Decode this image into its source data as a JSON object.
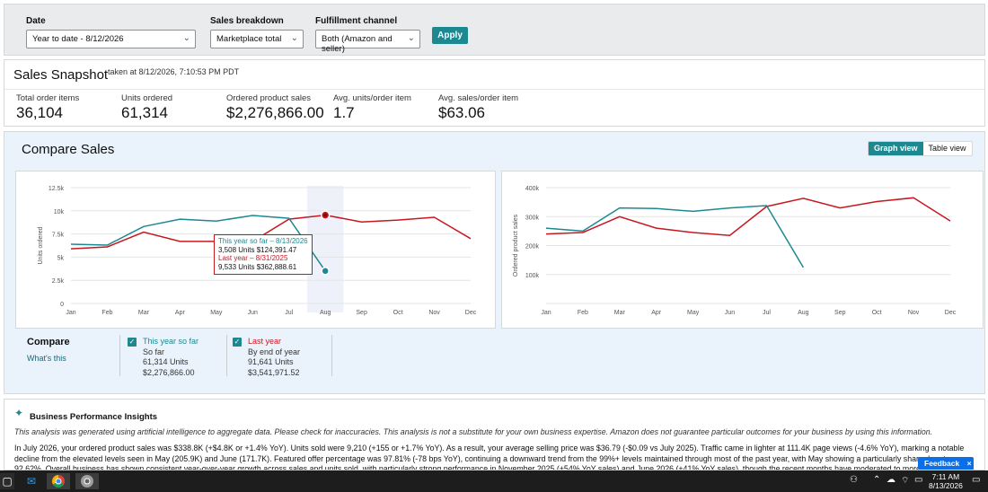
{
  "filters": {
    "date_label": "Date",
    "date_value": "Year to date - 8/12/2026",
    "breakdown_label": "Sales breakdown",
    "breakdown_value": "Marketplace total",
    "channel_label": "Fulfillment channel",
    "channel_value": "Both (Amazon and seller)",
    "apply_label": "Apply"
  },
  "snapshot": {
    "title": "Sales Snapshot",
    "taken": "taken at 8/12/2026, 7:10:53 PM PDT",
    "metrics": [
      {
        "label": "Total order items",
        "value": "36,104"
      },
      {
        "label": "Units ordered",
        "value": "61,314"
      },
      {
        "label": "Ordered product sales",
        "value": "$2,276,866.00"
      },
      {
        "label": "Avg. units/order item",
        "value": "1.7"
      },
      {
        "label": "Avg. sales/order item",
        "value": "$63.06"
      }
    ]
  },
  "compare": {
    "title": "Compare Sales",
    "graph_view_label": "Graph view",
    "table_view_label": "Table view",
    "legend_title": "Compare",
    "whats_this": "What's this",
    "series": [
      {
        "name": "This year so far",
        "sub": "So far",
        "units": "61,314 Units",
        "sales": "$2,276,866.00",
        "color": "#1e8890"
      },
      {
        "name": "Last year",
        "sub": "By end of year",
        "units": "91,641 Units",
        "sales": "$3,541,971.52",
        "color": "#c7171f"
      }
    ],
    "tooltip": {
      "ty_label": "This year so far – 8/13/2026",
      "ty_value": "3,508 Units $124,391.47",
      "ly_label": "Last year – 8/31/2025",
      "ly_value": "9,533 Units $362,888.61"
    }
  },
  "chart_data": [
    {
      "type": "line",
      "ylabel": "Units ordered",
      "categories": [
        "Jan",
        "Feb",
        "Mar",
        "Apr",
        "May",
        "Jun",
        "Jul",
        "Aug",
        "Sep",
        "Oct",
        "Nov",
        "Dec"
      ],
      "y_ticks": [
        "0",
        "2.5k",
        "5k",
        "7.5k",
        "10k",
        "12.5k"
      ],
      "ylim": [
        0,
        12500
      ],
      "highlight_category": "Aug",
      "series": [
        {
          "name": "This year so far",
          "color": "#1e8890",
          "values": [
            6400,
            6300,
            8300,
            9100,
            8900,
            9500,
            9200,
            3508,
            null,
            null,
            null,
            null
          ]
        },
        {
          "name": "Last year",
          "color": "#c7171f",
          "values": [
            5900,
            6100,
            7700,
            6700,
            6700,
            6700,
            9100,
            9533,
            8800,
            9000,
            9300,
            7000
          ]
        }
      ]
    },
    {
      "type": "line",
      "ylabel": "Ordered product sales",
      "categories": [
        "Jan",
        "Feb",
        "Mar",
        "Apr",
        "May",
        "Jun",
        "Jul",
        "Aug",
        "Sep",
        "Oct",
        "Nov",
        "Dec"
      ],
      "y_ticks": [
        "100k",
        "200k",
        "300k",
        "400k"
      ],
      "ylim": [
        0,
        400000
      ],
      "series": [
        {
          "name": "This year so far",
          "color": "#1e8890",
          "values": [
            260000,
            250000,
            330000,
            328000,
            318000,
            330000,
            338000,
            124391,
            null,
            null,
            null,
            null
          ]
        },
        {
          "name": "Last year",
          "color": "#c7171f",
          "values": [
            240000,
            245000,
            300000,
            260000,
            245000,
            235000,
            335000,
            363000,
            330000,
            352000,
            365000,
            285000
          ]
        }
      ]
    }
  ],
  "insights": {
    "title": "Business Performance Insights",
    "disclaimer": "This analysis was generated using artificial intelligence to aggregate data. Please check for inaccuracies. This analysis is not a substitute for your own business expertise. Amazon does not guarantee particular outcomes for your business by using this information.",
    "body": "In July 2026, your ordered product sales was $338.8K (+$4.8K or +1.4% YoY). Units sold were 9,210 (+155 or +1.7% YoY). As a result, your average selling price was $36.79 (-$0.09 vs July 2025). Traffic came in lighter at 111.4K page views (-4.6% YoY), marking a notable decline from the elevated levels seen in May (205.9K) and June (171.7K). Featured offer percentage was 97.81% (-78 bps YoY), continuing a downward trend from the 99%+ levels maintained through most of the past year, with May showing a particularly sharp drop to 92.62%. Overall business has shown consistent year-over-year growth across sales and units sold, with particularly strong performance in November 2025 (+54% YoY sales) and June 2026 (+41% YoY sales), though the recent months have moderated to more modest single-digit growth."
  },
  "feedback_label": "Feedback",
  "taskbar": {
    "time": "7:11 AM",
    "date": "8/13/2026"
  }
}
